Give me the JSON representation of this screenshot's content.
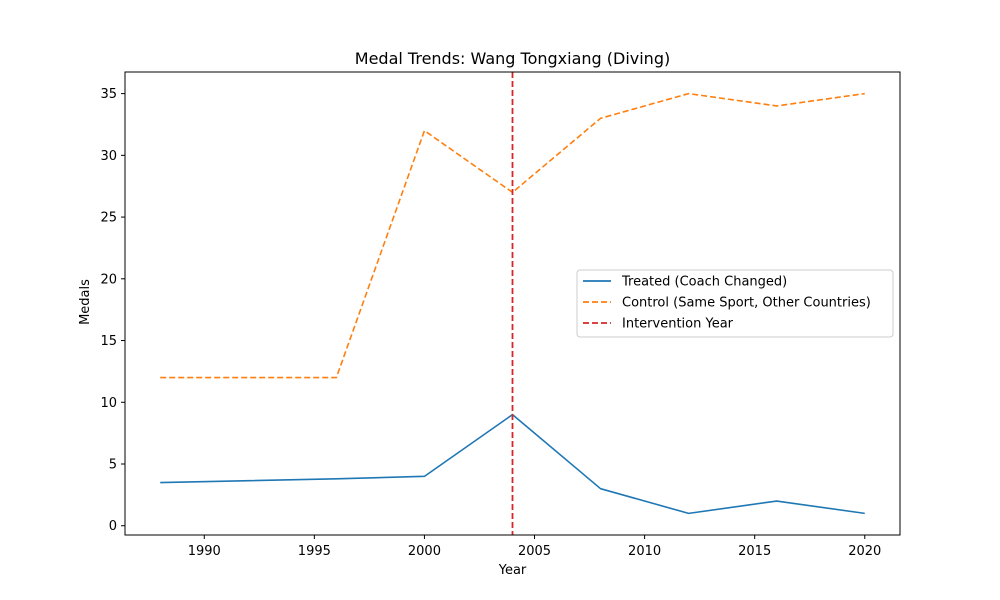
{
  "chart_data": {
    "type": "line",
    "title": "Medal Trends: Wang Tongxiang (Diving)",
    "xlabel": "Year",
    "ylabel": "Medals",
    "xlim": [
      1986.4,
      2021.6
    ],
    "ylim": [
      -0.75,
      36.75
    ],
    "x_ticks": [
      1990,
      1995,
      2000,
      2005,
      2010,
      2015,
      2020
    ],
    "y_ticks": [
      0,
      5,
      10,
      15,
      20,
      25,
      30,
      35
    ],
    "grid": false,
    "legend_position": "center-right",
    "x": [
      1988,
      1996,
      2000,
      2004,
      2008,
      2012,
      2016,
      2020
    ],
    "series": [
      {
        "name": "Treated (Coach Changed)",
        "values": [
          3.5,
          3.8,
          4,
          9,
          3,
          1,
          2,
          1
        ],
        "color": "#1f77b4",
        "style": "solid"
      },
      {
        "name": "Control (Same Sport, Other Countries)",
        "values": [
          12,
          12,
          32,
          27,
          33,
          35,
          34,
          35
        ],
        "color": "#ff7f0e",
        "style": "dashed"
      }
    ],
    "vline": {
      "name": "Intervention Year",
      "x": 2004,
      "color": "#d62728",
      "style": "dashed"
    }
  }
}
